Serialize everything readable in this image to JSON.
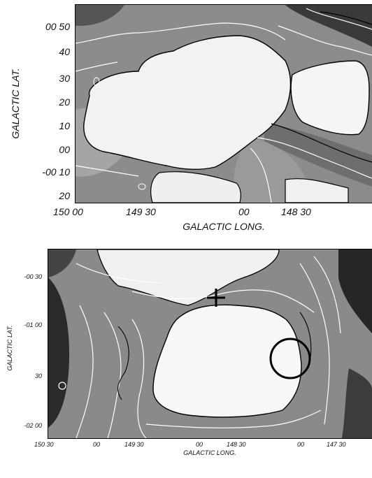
{
  "top_panel": {
    "y_ticks": [
      "00 50",
      "40",
      "30",
      "20",
      "10",
      "00",
      "-00 10",
      "20"
    ],
    "x_ticks": [
      "150 00",
      "149 30",
      "00",
      "148 30"
    ],
    "y_label": "GALACTIC LAT.",
    "x_label": "GALACTIC LONG."
  },
  "bottom_panel": {
    "y_ticks": [
      "-00 30",
      "-01 00",
      "30",
      "-02 00"
    ],
    "x_ticks": [
      "150 30",
      "00",
      "149 30",
      "00",
      "148 30",
      "00",
      "147 30"
    ],
    "y_label": "GALACTIC LAT.",
    "x_label": "GALACTIC LONG.",
    "markers": [
      "cross-marker",
      "circle-marker"
    ]
  },
  "colors": {
    "background": "#ffffff",
    "ink": "#000000",
    "map_dark": "#222222",
    "map_light": "#f4f4f4"
  }
}
